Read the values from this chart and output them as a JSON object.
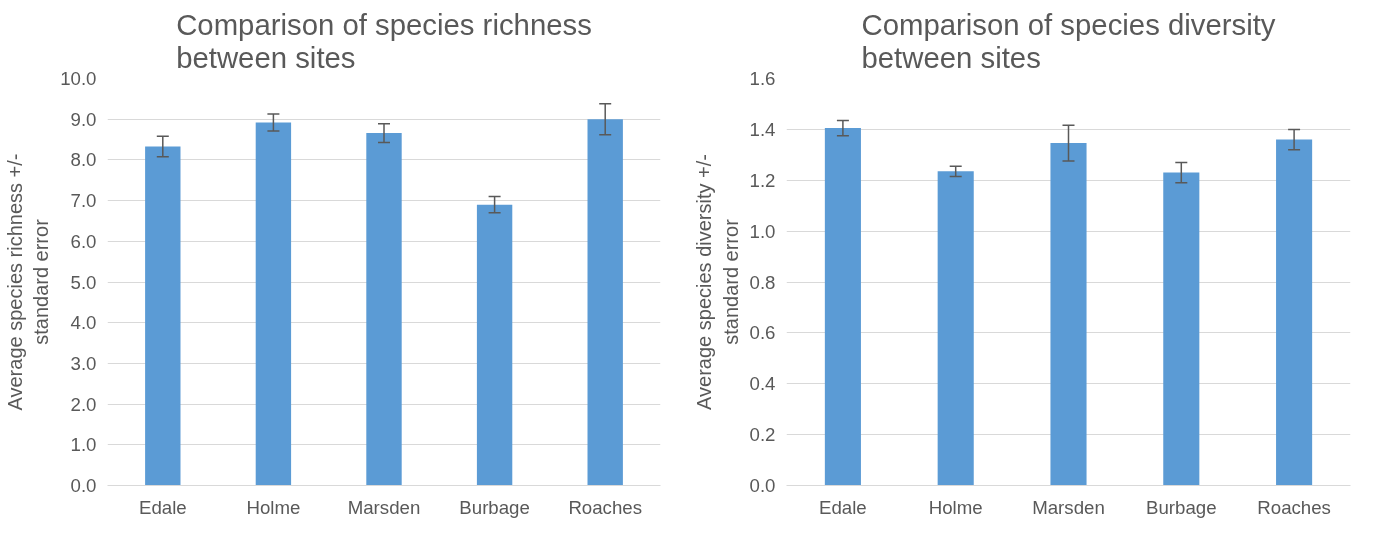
{
  "chart_data": [
    {
      "type": "bar",
      "title": "Comparison of species richness between sites",
      "ylabel": "Average species richness +/- standard error",
      "categories": [
        "Edale",
        "Holme",
        "Marsden",
        "Burbage",
        "Roaches"
      ],
      "values": [
        8.33,
        8.92,
        8.66,
        6.9,
        9.0
      ],
      "errors": [
        0.25,
        0.21,
        0.23,
        0.2,
        0.38
      ],
      "color": "#5b9bd5",
      "ylim": [
        0,
        10
      ],
      "yticks": [
        {
          "value": 0,
          "label": "0.0"
        },
        {
          "value": 1,
          "label": "1.0"
        },
        {
          "value": 2,
          "label": "2.0"
        },
        {
          "value": 3,
          "label": "3.0"
        },
        {
          "value": 4,
          "label": "4.0"
        },
        {
          "value": 5,
          "label": "5.0"
        },
        {
          "value": 6,
          "label": "6.0"
        },
        {
          "value": 7,
          "label": "7.0"
        },
        {
          "value": 8,
          "label": "8.0"
        },
        {
          "value": 9,
          "label": "9.0"
        },
        {
          "value": 10,
          "label": "10.0"
        }
      ],
      "grid": "y"
    },
    {
      "type": "bar",
      "title": "Comparison of species diversity between sites",
      "ylabel": "Average species diversity +/- standard error",
      "categories": [
        "Edale",
        "Holme",
        "Marsden",
        "Burbage",
        "Roaches"
      ],
      "values": [
        1.405,
        1.235,
        1.346,
        1.23,
        1.36
      ],
      "errors": [
        0.03,
        0.02,
        0.07,
        0.04,
        0.04
      ],
      "color": "#5b9bd5",
      "ylim": [
        0,
        1.6
      ],
      "yticks": [
        {
          "value": 0,
          "label": "0.0"
        },
        {
          "value": 0.2,
          "label": "0.2"
        },
        {
          "value": 0.4,
          "label": "0.4"
        },
        {
          "value": 0.6,
          "label": "0.6"
        },
        {
          "value": 0.8,
          "label": "0.8"
        },
        {
          "value": 1.0,
          "label": "1.0"
        },
        {
          "value": 1.2,
          "label": "1.2"
        },
        {
          "value": 1.4,
          "label": "1.4"
        },
        {
          "value": 1.6,
          "label": "1.6"
        }
      ],
      "grid": "y"
    }
  ]
}
